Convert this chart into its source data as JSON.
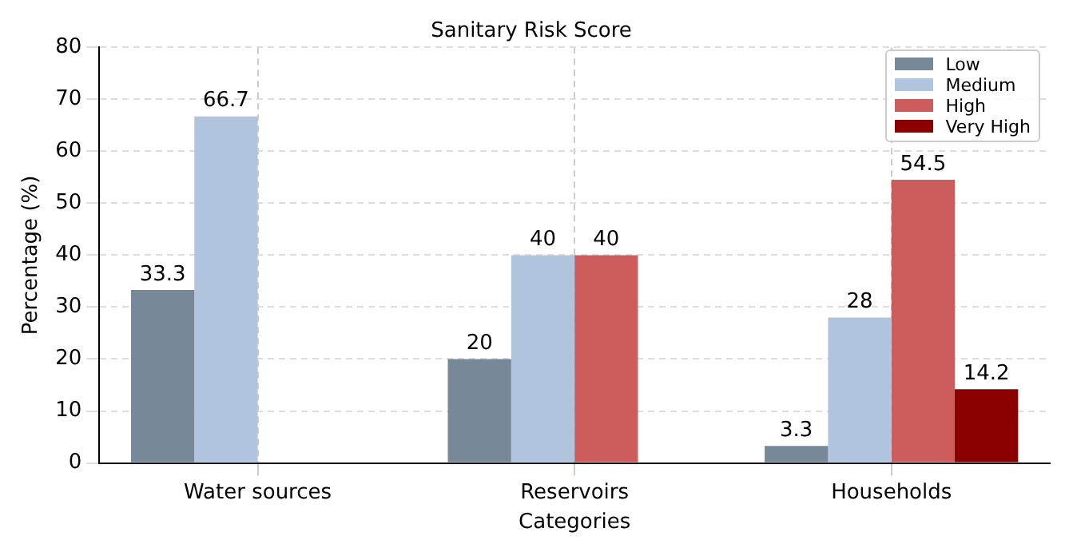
{
  "chart_data": {
    "type": "bar",
    "title": "Sanitary Risk Score",
    "xlabel": "Categories",
    "ylabel": "Percentage (%)",
    "categories": [
      "Water sources",
      "Reservoirs",
      "Households"
    ],
    "series": [
      {
        "name": "Low",
        "color": "#778899",
        "values": [
          33.3,
          20,
          3.3
        ]
      },
      {
        "name": "Medium",
        "color": "#b0c4de",
        "values": [
          66.7,
          40,
          28
        ]
      },
      {
        "name": "High",
        "color": "#cd5c5c",
        "values": [
          null,
          40,
          54.5
        ]
      },
      {
        "name": "Very High",
        "color": "#8b0000",
        "values": [
          null,
          null,
          14.2
        ]
      }
    ],
    "ylim": [
      0,
      80
    ],
    "yticks": [
      0,
      10,
      20,
      30,
      40,
      50,
      60,
      70,
      80
    ],
    "grid": true,
    "legend": "top right",
    "data_labels": true
  }
}
